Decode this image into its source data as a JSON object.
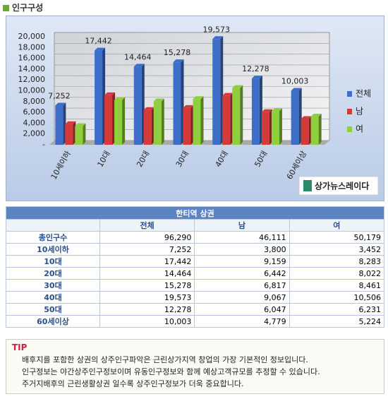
{
  "header": {
    "title": "인구구성"
  },
  "chart_data": {
    "type": "bar",
    "categories": [
      "10세이하",
      "10대",
      "20대",
      "30대",
      "40대",
      "50대",
      "60세이상"
    ],
    "series": [
      {
        "name": "전체",
        "color": "#3d6fc9",
        "values": [
          7252,
          17442,
          14464,
          15278,
          19573,
          12278,
          10003
        ],
        "value_labels": [
          "7,252",
          "17,442",
          "14,464",
          "15,278",
          "19,573",
          "12,278",
          "10,003"
        ]
      },
      {
        "name": "남",
        "color": "#d43a3a",
        "values": [
          3800,
          9159,
          6442,
          6817,
          9067,
          6047,
          4779
        ]
      },
      {
        "name": "여",
        "color": "#8fce3c",
        "values": [
          3452,
          8283,
          8022,
          8461,
          10506,
          6231,
          5224
        ]
      }
    ],
    "ylim": [
      0,
      20000
    ],
    "yticks": [
      {
        "value": 0,
        "label": "-"
      },
      {
        "value": 2000,
        "label": "2,000"
      },
      {
        "value": 4000,
        "label": "4,000"
      },
      {
        "value": 6000,
        "label": "6,000"
      },
      {
        "value": 8000,
        "label": "8,000"
      },
      {
        "value": 10000,
        "label": "10,000"
      },
      {
        "value": 12000,
        "label": "12,000"
      },
      {
        "value": 14000,
        "label": "14,000"
      },
      {
        "value": 16000,
        "label": "16,000"
      },
      {
        "value": 18000,
        "label": "18,000"
      },
      {
        "value": 20000,
        "label": "20,000"
      }
    ],
    "grid": true,
    "legend": "right"
  },
  "logo": "상가뉴스레이다",
  "table": {
    "title": "한티역 상권",
    "columns": [
      "전체",
      "남",
      "여"
    ],
    "rows": [
      [
        "총인구수",
        "96,290",
        "46,111",
        "50,179"
      ],
      [
        "10세이하",
        "7,252",
        "3,800",
        "3,452"
      ],
      [
        "10대",
        "17,442",
        "9,159",
        "8,283"
      ],
      [
        "20대",
        "14,464",
        "6,442",
        "8,022"
      ],
      [
        "30대",
        "15,278",
        "6,817",
        "8,461"
      ],
      [
        "40대",
        "19,573",
        "9,067",
        "10,506"
      ],
      [
        "50대",
        "12,278",
        "6,047",
        "6,231"
      ],
      [
        "60세이상",
        "10,003",
        "4,779",
        "5,224"
      ]
    ]
  },
  "tip": {
    "label": "TIP",
    "lines": [
      "배후지를 포함한 상권의 상주인구파악은 근린상가지역 창업의 가장 기본적인 정보입니다.",
      "인구정보는 야간상주인구정보이며 유동인구정보와 함께 예상고객규모를 추정할 수 있습니다.",
      "주거지배후의 근린생활상권 일수록 상주인구정보가 더욱 중요합니다."
    ]
  }
}
